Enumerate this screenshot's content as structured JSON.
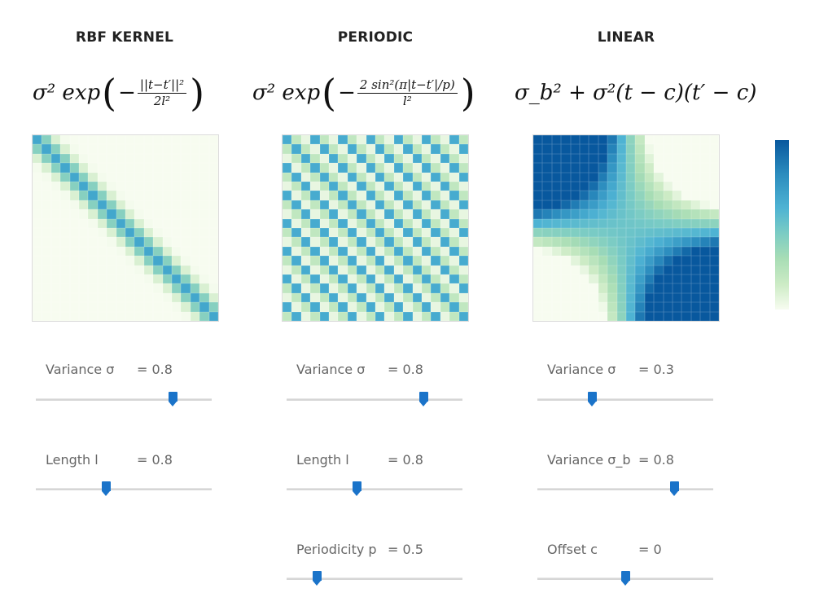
{
  "colors": {
    "slider_thumb": "#1a73c9",
    "colormap": [
      "#f7fcf0",
      "#ccebc5",
      "#a8ddb5",
      "#7bccc4",
      "#4eb3d3",
      "#2b8cbe",
      "#08589e"
    ]
  },
  "kernels": [
    {
      "title": "RBF KERNEL",
      "formula_main": "σ² exp",
      "formula_sign": "−",
      "formula_num": "||t−t′||²",
      "formula_den": "2l²",
      "controls": [
        {
          "label": "Variance σ",
          "value_text": "= 0.8",
          "level": 0.78
        },
        {
          "label": "Length l",
          "value_text": "= 0.8",
          "level": 0.4
        }
      ]
    },
    {
      "title": "PERIODIC",
      "formula_main": "σ² exp",
      "formula_sign": "−",
      "formula_num": "2 sin²(π|t−t′|/p)",
      "formula_den": "l²",
      "controls": [
        {
          "label": "Variance σ",
          "value_text": "= 0.8",
          "level": 0.78
        },
        {
          "label": "Length l",
          "value_text": "= 0.8",
          "level": 0.4
        },
        {
          "label": "Periodicity p",
          "value_text": "= 0.5",
          "level": 0.17
        }
      ]
    },
    {
      "title": "LINEAR",
      "formula_main": "σ_b² + σ²(t − c)(t′ − c)",
      "controls": [
        {
          "label": "Variance σ",
          "value_text": "= 0.3",
          "level": 0.31
        },
        {
          "label": "Variance σ_b",
          "value_text": "= 0.8",
          "level": 0.78
        },
        {
          "label": "Offset c",
          "value_text": "= 0",
          "level": 0.5
        }
      ]
    }
  ]
}
